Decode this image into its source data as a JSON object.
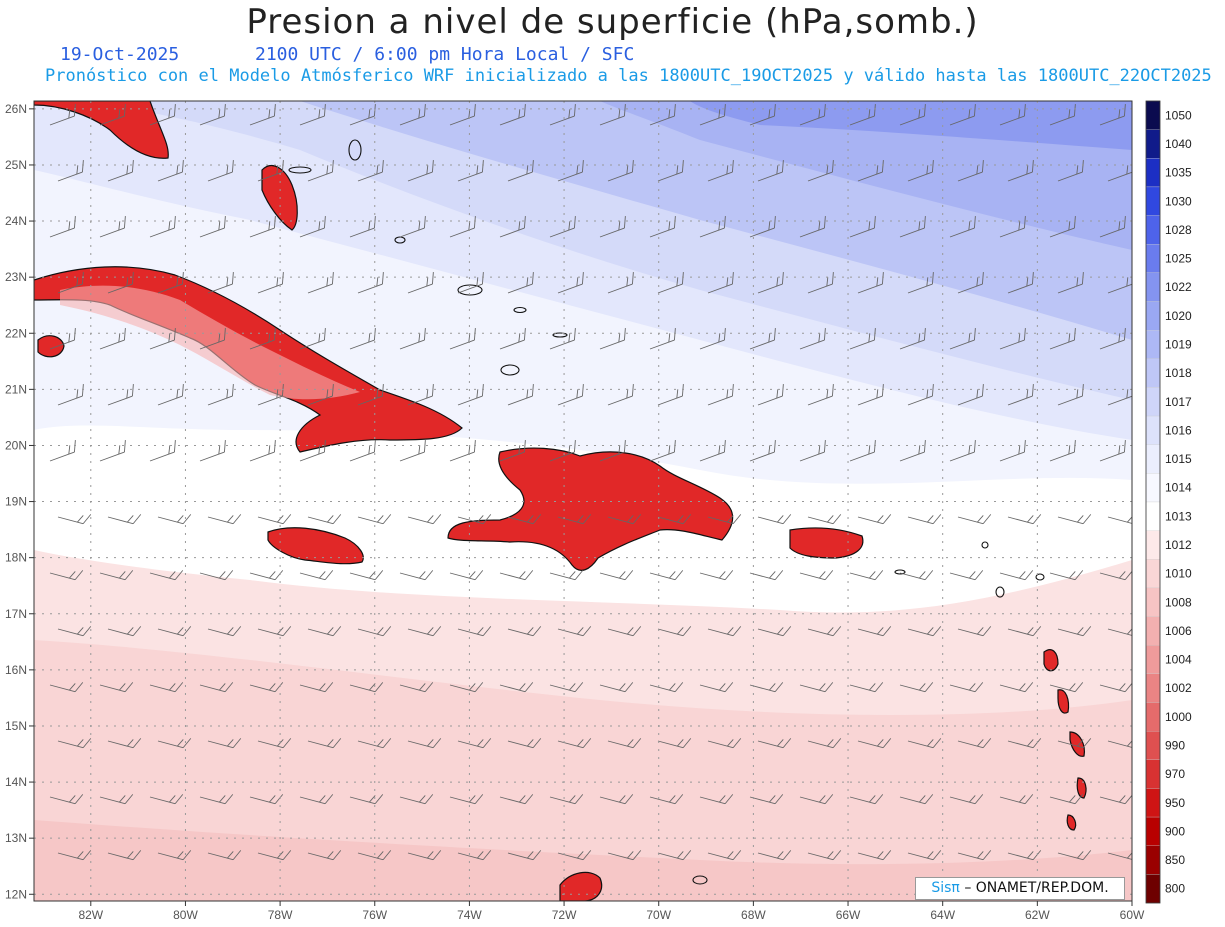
{
  "title": "Presion a nivel de superficie (hPa,somb.)",
  "date": "19-Oct-2025",
  "valid_time": "2100 UTC / 6:00 pm Hora Local / SFC",
  "subtitle": "Pronóstico con el Modelo Atmósferico WRF inicializado a las 1800UTC_19OCT2025 y válido hasta las  1800UTC_22OCT2025",
  "credit_logo": "Sisπ",
  "credit_text": "– ONAMET/REP.DOM.",
  "lat_labels": [
    "26N",
    "25N",
    "24N",
    "23N",
    "22N",
    "21N",
    "20N",
    "19N",
    "18N",
    "17N",
    "16N",
    "15N",
    "14N",
    "13N",
    "12N"
  ],
  "lon_labels": [
    "82W",
    "80W",
    "78W",
    "76W",
    "74W",
    "72W",
    "70W",
    "68W",
    "66W",
    "64W",
    "62W",
    "60W"
  ],
  "colorbar": {
    "levels": [
      "1050",
      "1040",
      "1035",
      "1030",
      "1028",
      "1025",
      "1022",
      "1020",
      "1019",
      "1018",
      "1017",
      "1016",
      "1015",
      "1014",
      "1013",
      "1012",
      "1010",
      "1008",
      "1006",
      "1004",
      "1002",
      "1000",
      "990",
      "970",
      "950",
      "900",
      "850",
      "800"
    ],
    "colors": [
      "#0b0b4f",
      "#101b8a",
      "#1c2fc4",
      "#3048e0",
      "#4e63ea",
      "#6a7cee",
      "#8494f0",
      "#9aa8f3",
      "#adb8f5",
      "#bfc7f7",
      "#cfd5f9",
      "#dde2fb",
      "#ebeefd",
      "#f7f8ff",
      "#ffffff",
      "#fde9e9",
      "#fad6d6",
      "#f7c4c4",
      "#f3b0b0",
      "#ef9b9b",
      "#ea8484",
      "#e56b6b",
      "#df5050",
      "#d83232",
      "#cf1414",
      "#b80000",
      "#9a0000",
      "#6e0000"
    ]
  }
}
